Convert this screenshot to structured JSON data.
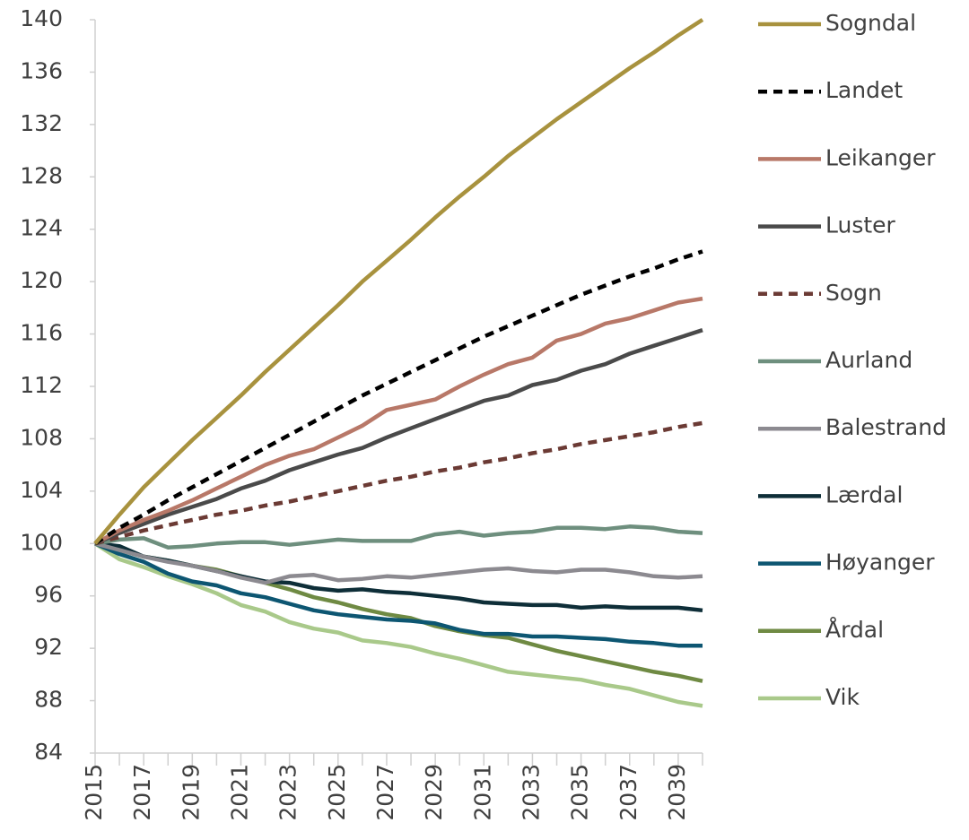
{
  "chart_data": {
    "type": "line",
    "x": [
      2015,
      2016,
      2017,
      2018,
      2019,
      2020,
      2021,
      2022,
      2023,
      2024,
      2025,
      2026,
      2027,
      2028,
      2029,
      2030,
      2031,
      2032,
      2033,
      2034,
      2035,
      2036,
      2037,
      2038,
      2039,
      2040
    ],
    "xlim": [
      2015,
      2040
    ],
    "xticks": [
      2015,
      2017,
      2019,
      2021,
      2023,
      2025,
      2027,
      2029,
      2031,
      2033,
      2035,
      2037,
      2039
    ],
    "ylim": [
      84,
      140
    ],
    "yticks": [
      84,
      88,
      92,
      96,
      100,
      104,
      108,
      112,
      116,
      120,
      124,
      128,
      132,
      136,
      140
    ],
    "legend": "right",
    "series": [
      {
        "name": "Sogndal",
        "color": "#a8923e",
        "dashed": false,
        "values": [
          100,
          102.2,
          104.3,
          106.1,
          107.9,
          109.6,
          111.3,
          113.1,
          114.8,
          116.5,
          118.2,
          120.0,
          121.6,
          123.2,
          124.9,
          126.5,
          128.0,
          129.6,
          131.0,
          132.4,
          133.7,
          135.0,
          136.3,
          137.5,
          138.8,
          140.0
        ]
      },
      {
        "name": "Landet",
        "color": "#000000",
        "dashed": true,
        "values": [
          100,
          101.2,
          102.2,
          103.3,
          104.3,
          105.3,
          106.3,
          107.3,
          108.3,
          109.3,
          110.3,
          111.3,
          112.2,
          113.1,
          114.0,
          114.9,
          115.8,
          116.6,
          117.4,
          118.2,
          119.0,
          119.7,
          120.4,
          121.0,
          121.7,
          122.3
        ]
      },
      {
        "name": "Leikanger",
        "color": "#b87868",
        "dashed": false,
        "values": [
          100,
          101.0,
          101.8,
          102.5,
          103.3,
          104.2,
          105.1,
          106.0,
          106.7,
          107.2,
          108.1,
          109.0,
          110.2,
          110.6,
          111.0,
          112.0,
          112.9,
          113.7,
          114.2,
          115.5,
          116.0,
          116.8,
          117.2,
          117.8,
          118.4,
          118.7
        ]
      },
      {
        "name": "Luster",
        "color": "#4a4a4a",
        "dashed": false,
        "values": [
          100,
          100.8,
          101.5,
          102.2,
          102.8,
          103.4,
          104.2,
          104.8,
          105.6,
          106.2,
          106.8,
          107.3,
          108.1,
          108.8,
          109.5,
          110.2,
          110.9,
          111.3,
          112.1,
          112.5,
          113.2,
          113.7,
          114.5,
          115.1,
          115.7,
          116.3
        ]
      },
      {
        "name": "Sogn",
        "color": "#6b3a34",
        "dashed": true,
        "values": [
          100,
          100.5,
          101.0,
          101.4,
          101.8,
          102.2,
          102.5,
          102.9,
          103.2,
          103.6,
          104.0,
          104.4,
          104.8,
          105.1,
          105.5,
          105.8,
          106.2,
          106.5,
          106.9,
          107.2,
          107.6,
          107.9,
          108.2,
          108.5,
          108.9,
          109.2
        ]
      },
      {
        "name": "Aurland",
        "color": "#6e8f7e",
        "dashed": false,
        "values": [
          100,
          100.3,
          100.4,
          99.7,
          99.8,
          100.0,
          100.1,
          100.1,
          99.9,
          100.1,
          100.3,
          100.2,
          100.2,
          100.2,
          100.7,
          100.9,
          100.6,
          100.8,
          100.9,
          101.2,
          101.2,
          101.1,
          101.3,
          101.2,
          100.9,
          100.8
        ]
      },
      {
        "name": "Balestrand",
        "color": "#8c8a90",
        "dashed": false,
        "values": [
          100,
          99.5,
          99.0,
          98.6,
          98.3,
          97.9,
          97.4,
          97.0,
          97.5,
          97.6,
          97.2,
          97.3,
          97.5,
          97.4,
          97.6,
          97.8,
          98.0,
          98.1,
          97.9,
          97.8,
          98.0,
          98.0,
          97.8,
          97.5,
          97.4,
          97.5
        ]
      },
      {
        "name": "Lærdal",
        "color": "#0e2e38",
        "dashed": false,
        "values": [
          100,
          99.8,
          99.0,
          98.7,
          98.3,
          97.9,
          97.5,
          97.1,
          97.0,
          96.6,
          96.4,
          96.5,
          96.3,
          96.2,
          96.0,
          95.8,
          95.5,
          95.4,
          95.3,
          95.3,
          95.1,
          95.2,
          95.1,
          95.1,
          95.1,
          94.9
        ]
      },
      {
        "name": "Høyanger",
        "color": "#0d5672",
        "dashed": false,
        "values": [
          100,
          99.2,
          98.6,
          97.7,
          97.1,
          96.8,
          96.2,
          95.9,
          95.4,
          94.9,
          94.6,
          94.4,
          94.2,
          94.1,
          93.9,
          93.4,
          93.1,
          93.1,
          92.9,
          92.9,
          92.8,
          92.7,
          92.5,
          92.4,
          92.2,
          92.2
        ]
      },
      {
        "name": "Årdal",
        "color": "#6f8a43",
        "dashed": false,
        "values": [
          100,
          99.5,
          99.0,
          98.7,
          98.3,
          98.0,
          97.5,
          97.0,
          96.5,
          95.9,
          95.5,
          95.0,
          94.6,
          94.3,
          93.7,
          93.3,
          93.0,
          92.8,
          92.3,
          91.8,
          91.4,
          91.0,
          90.6,
          90.2,
          89.9,
          89.5
        ]
      },
      {
        "name": "Vik",
        "color": "#a9c98a",
        "dashed": false,
        "values": [
          100,
          98.8,
          98.2,
          97.5,
          96.9,
          96.2,
          95.3,
          94.8,
          94.0,
          93.5,
          93.2,
          92.6,
          92.4,
          92.1,
          91.6,
          91.2,
          90.7,
          90.2,
          90.0,
          89.8,
          89.6,
          89.2,
          88.9,
          88.4,
          87.9,
          87.6
        ]
      }
    ]
  }
}
